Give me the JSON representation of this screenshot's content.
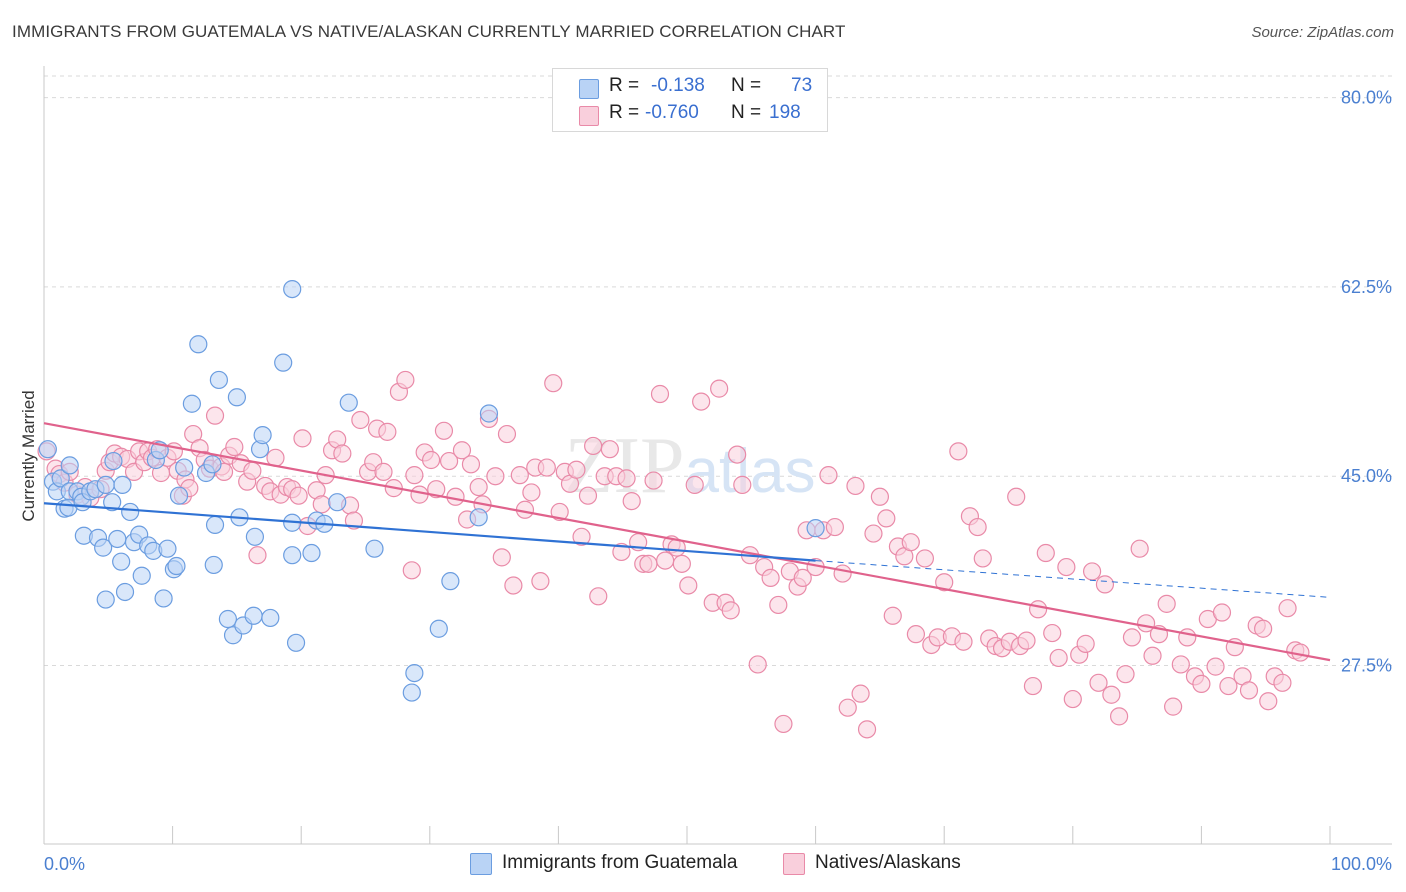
{
  "title": "IMMIGRANTS FROM GUATEMALA VS NATIVE/ALASKAN CURRENTLY MARRIED CORRELATION CHART",
  "source": "Source: ZipAtlas.com",
  "watermark": "ZIPatlas",
  "colors": {
    "blue_fill": "#b9d3f5",
    "blue_stroke": "#6b9de0",
    "blue_line": "#2f72d4",
    "pink_fill": "#f9cfdc",
    "pink_stroke": "#e98aa8",
    "pink_line": "#e0628c",
    "label_blue": "#4a7fd0",
    "grid": "#d9d9d9"
  },
  "legend": {
    "r_label": "R =",
    "n_label": "N =",
    "rows": [
      {
        "r": "-0.138",
        "n": "73"
      },
      {
        "r": "-0.760",
        "n": "198"
      }
    ]
  },
  "chart_data": {
    "type": "scatter",
    "title": "IMMIGRANTS FROM GUATEMALA VS NATIVE/ALASKAN CURRENTLY MARRIED CORRELATION CHART",
    "xlabel": "",
    "ylabel": "Currently Married",
    "xlim": [
      0,
      100
    ],
    "ylim": [
      11,
      82
    ],
    "x_tick_labels": [
      "0.0%",
      "100.0%"
    ],
    "y_ticks": [
      27.5,
      45.0,
      62.5,
      80.0
    ],
    "y_tick_labels": [
      "27.5%",
      "45.0%",
      "62.5%",
      "80.0%"
    ],
    "grid": true,
    "legend_position": "top-center",
    "series": [
      {
        "name": "Immigrants from Guatemala",
        "r": -0.138,
        "n": 73,
        "trend": {
          "x0": 0,
          "y0": 42.5,
          "x1": 60,
          "y1": 37.2,
          "dash_x1": 100,
          "dash_y1": 33.8
        },
        "points": [
          [
            0.3,
            47.5
          ],
          [
            0.7,
            44.5
          ],
          [
            1.0,
            43.6
          ],
          [
            1.3,
            44.8
          ],
          [
            1.6,
            42.0
          ],
          [
            1.9,
            42.1
          ],
          [
            2.0,
            43.6
          ],
          [
            2.6,
            43.6
          ],
          [
            2.9,
            43.1
          ],
          [
            3.0,
            42.6
          ],
          [
            3.1,
            39.5
          ],
          [
            3.6,
            43.6
          ],
          [
            4.0,
            43.8
          ],
          [
            4.2,
            39.3
          ],
          [
            4.6,
            38.4
          ],
          [
            4.8,
            44.2
          ],
          [
            5.3,
            42.6
          ],
          [
            5.4,
            46.4
          ],
          [
            5.7,
            39.2
          ],
          [
            6.0,
            37.1
          ],
          [
            6.3,
            34.3
          ],
          [
            6.7,
            41.7
          ],
          [
            7.0,
            38.9
          ],
          [
            7.4,
            39.6
          ],
          [
            7.6,
            35.8
          ],
          [
            8.1,
            38.6
          ],
          [
            8.5,
            38.1
          ],
          [
            8.7,
            46.5
          ],
          [
            9.0,
            47.4
          ],
          [
            9.3,
            33.7
          ],
          [
            9.6,
            38.3
          ],
          [
            10.1,
            36.4
          ],
          [
            10.3,
            36.7
          ],
          [
            10.5,
            43.2
          ],
          [
            10.9,
            45.8
          ],
          [
            11.5,
            51.7
          ],
          [
            12.0,
            57.2
          ],
          [
            12.6,
            45.3
          ],
          [
            13.1,
            46.1
          ],
          [
            13.2,
            36.8
          ],
          [
            13.3,
            40.5
          ],
          [
            13.6,
            53.9
          ],
          [
            14.3,
            31.8
          ],
          [
            14.7,
            30.3
          ],
          [
            15.0,
            52.3
          ],
          [
            15.2,
            41.2
          ],
          [
            15.5,
            31.2
          ],
          [
            16.3,
            32.1
          ],
          [
            16.4,
            39.4
          ],
          [
            16.8,
            47.5
          ],
          [
            17.0,
            48.8
          ],
          [
            17.6,
            31.9
          ],
          [
            18.6,
            55.5
          ],
          [
            19.3,
            62.3
          ],
          [
            19.3,
            40.7
          ],
          [
            19.3,
            37.7
          ],
          [
            19.6,
            29.6
          ],
          [
            20.8,
            37.9
          ],
          [
            21.2,
            40.9
          ],
          [
            21.8,
            40.6
          ],
          [
            22.8,
            42.6
          ],
          [
            23.7,
            51.8
          ],
          [
            25.7,
            38.3
          ],
          [
            28.6,
            25.0
          ],
          [
            28.8,
            26.8
          ],
          [
            30.7,
            30.9
          ],
          [
            31.6,
            35.3
          ],
          [
            33.8,
            41.2
          ],
          [
            34.6,
            50.8
          ],
          [
            60.0,
            40.2
          ],
          [
            4.8,
            33.6
          ],
          [
            2.0,
            46.0
          ],
          [
            6.1,
            44.2
          ]
        ]
      },
      {
        "name": "Natives/Alaskans",
        "r": -0.76,
        "n": 198,
        "trend": {
          "x0": 0,
          "y0": 49.9,
          "x1": 100,
          "y1": 28.0
        },
        "points": [
          [
            0.2,
            47.3
          ],
          [
            0.9,
            45.7
          ],
          [
            1.2,
            45.2
          ],
          [
            1.6,
            44.4
          ],
          [
            2.0,
            45.4
          ],
          [
            2.6,
            43.3
          ],
          [
            3.2,
            44.0
          ],
          [
            3.6,
            43.0
          ],
          [
            4.4,
            43.8
          ],
          [
            4.8,
            45.5
          ],
          [
            5.1,
            46.3
          ],
          [
            5.5,
            47.1
          ],
          [
            6.0,
            46.8
          ],
          [
            6.5,
            46.6
          ],
          [
            7.0,
            45.4
          ],
          [
            7.4,
            47.3
          ],
          [
            7.8,
            46.3
          ],
          [
            8.1,
            47.3
          ],
          [
            8.4,
            46.7
          ],
          [
            8.8,
            47.5
          ],
          [
            9.1,
            45.3
          ],
          [
            9.6,
            46.7
          ],
          [
            10.1,
            47.3
          ],
          [
            10.4,
            45.5
          ],
          [
            10.8,
            43.2
          ],
          [
            11.0,
            44.7
          ],
          [
            11.3,
            43.9
          ],
          [
            11.6,
            48.9
          ],
          [
            12.1,
            47.6
          ],
          [
            12.5,
            46.5
          ],
          [
            12.9,
            45.7
          ],
          [
            13.3,
            50.6
          ],
          [
            13.8,
            45.9
          ],
          [
            14.0,
            45.4
          ],
          [
            14.4,
            46.9
          ],
          [
            14.8,
            47.7
          ],
          [
            15.3,
            46.2
          ],
          [
            15.8,
            44.5
          ],
          [
            16.2,
            45.5
          ],
          [
            16.6,
            37.7
          ],
          [
            17.2,
            44.1
          ],
          [
            17.6,
            43.6
          ],
          [
            18.0,
            46.7
          ],
          [
            18.4,
            43.3
          ],
          [
            18.9,
            44.0
          ],
          [
            19.3,
            43.8
          ],
          [
            19.8,
            43.2
          ],
          [
            20.1,
            48.5
          ],
          [
            20.5,
            40.4
          ],
          [
            21.2,
            43.7
          ],
          [
            21.6,
            42.4
          ],
          [
            21.9,
            45.1
          ],
          [
            22.4,
            47.4
          ],
          [
            22.8,
            48.4
          ],
          [
            23.2,
            47.1
          ],
          [
            23.8,
            42.3
          ],
          [
            24.1,
            40.9
          ],
          [
            24.6,
            50.2
          ],
          [
            25.2,
            45.4
          ],
          [
            25.6,
            46.3
          ],
          [
            25.9,
            49.4
          ],
          [
            26.4,
            45.4
          ],
          [
            26.7,
            49.1
          ],
          [
            27.2,
            43.9
          ],
          [
            27.6,
            52.8
          ],
          [
            28.1,
            53.9
          ],
          [
            28.6,
            36.3
          ],
          [
            28.8,
            45.1
          ],
          [
            29.2,
            43.3
          ],
          [
            29.6,
            47.2
          ],
          [
            30.1,
            46.5
          ],
          [
            30.5,
            43.8
          ],
          [
            31.1,
            49.2
          ],
          [
            31.5,
            46.4
          ],
          [
            32.0,
            43.1
          ],
          [
            32.5,
            47.4
          ],
          [
            32.9,
            41.0
          ],
          [
            33.2,
            46.1
          ],
          [
            33.8,
            44.0
          ],
          [
            34.1,
            42.4
          ],
          [
            34.6,
            50.3
          ],
          [
            35.1,
            45.0
          ],
          [
            35.6,
            37.5
          ],
          [
            36.0,
            48.9
          ],
          [
            36.5,
            34.9
          ],
          [
            37.0,
            45.1
          ],
          [
            37.4,
            41.9
          ],
          [
            37.9,
            43.5
          ],
          [
            38.2,
            45.8
          ],
          [
            38.6,
            35.3
          ],
          [
            39.1,
            45.8
          ],
          [
            39.6,
            53.6
          ],
          [
            40.1,
            41.7
          ],
          [
            40.5,
            45.4
          ],
          [
            40.9,
            44.3
          ],
          [
            41.4,
            45.6
          ],
          [
            41.8,
            39.4
          ],
          [
            42.3,
            43.2
          ],
          [
            42.7,
            47.8
          ],
          [
            43.1,
            33.9
          ],
          [
            43.6,
            45.0
          ],
          [
            44.0,
            47.5
          ],
          [
            44.5,
            45.0
          ],
          [
            44.9,
            38.0
          ],
          [
            45.3,
            44.8
          ],
          [
            45.7,
            42.7
          ],
          [
            46.2,
            38.9
          ],
          [
            46.6,
            36.9
          ],
          [
            47.0,
            36.9
          ],
          [
            47.4,
            44.6
          ],
          [
            47.9,
            52.6
          ],
          [
            48.3,
            37.2
          ],
          [
            48.8,
            38.7
          ],
          [
            49.2,
            38.4
          ],
          [
            49.6,
            36.9
          ],
          [
            50.1,
            34.9
          ],
          [
            50.6,
            44.2
          ],
          [
            51.1,
            51.9
          ],
          [
            52.0,
            33.3
          ],
          [
            52.5,
            53.1
          ],
          [
            53.0,
            33.3
          ],
          [
            53.4,
            32.6
          ],
          [
            53.9,
            47.0
          ],
          [
            54.3,
            44.2
          ],
          [
            54.9,
            37.7
          ],
          [
            55.5,
            27.6
          ],
          [
            56.0,
            36.6
          ],
          [
            56.5,
            35.6
          ],
          [
            57.1,
            33.1
          ],
          [
            57.5,
            22.1
          ],
          [
            58.0,
            36.2
          ],
          [
            58.6,
            34.8
          ],
          [
            59.0,
            35.6
          ],
          [
            59.3,
            40.0
          ],
          [
            60.0,
            36.6
          ],
          [
            60.6,
            40.0
          ],
          [
            61.0,
            45.1
          ],
          [
            61.5,
            40.3
          ],
          [
            62.1,
            36.0
          ],
          [
            62.5,
            23.6
          ],
          [
            63.1,
            44.1
          ],
          [
            63.5,
            24.9
          ],
          [
            64.0,
            21.6
          ],
          [
            64.5,
            39.7
          ],
          [
            65.0,
            43.1
          ],
          [
            65.5,
            41.1
          ],
          [
            66.0,
            32.1
          ],
          [
            66.4,
            38.5
          ],
          [
            66.9,
            37.6
          ],
          [
            67.4,
            38.9
          ],
          [
            67.8,
            30.4
          ],
          [
            68.5,
            37.4
          ],
          [
            69.0,
            29.4
          ],
          [
            69.5,
            30.1
          ],
          [
            70.0,
            35.2
          ],
          [
            70.6,
            30.2
          ],
          [
            71.1,
            47.3
          ],
          [
            71.5,
            29.7
          ],
          [
            72.0,
            41.3
          ],
          [
            72.6,
            40.3
          ],
          [
            73.0,
            37.4
          ],
          [
            73.5,
            30.0
          ],
          [
            74.0,
            29.3
          ],
          [
            74.5,
            29.1
          ],
          [
            75.1,
            29.7
          ],
          [
            75.6,
            43.1
          ],
          [
            75.9,
            29.3
          ],
          [
            76.4,
            29.8
          ],
          [
            76.9,
            25.6
          ],
          [
            77.3,
            32.7
          ],
          [
            77.9,
            37.9
          ],
          [
            78.4,
            30.5
          ],
          [
            78.9,
            28.2
          ],
          [
            79.5,
            36.6
          ],
          [
            80.0,
            24.4
          ],
          [
            80.5,
            28.5
          ],
          [
            81.0,
            29.5
          ],
          [
            81.5,
            36.2
          ],
          [
            82.0,
            25.9
          ],
          [
            82.5,
            35.0
          ],
          [
            83.0,
            24.8
          ],
          [
            83.6,
            22.8
          ],
          [
            84.1,
            26.7
          ],
          [
            84.6,
            30.1
          ],
          [
            85.2,
            38.3
          ],
          [
            85.7,
            31.4
          ],
          [
            86.2,
            28.4
          ],
          [
            86.7,
            30.4
          ],
          [
            87.3,
            33.2
          ],
          [
            87.8,
            23.7
          ],
          [
            88.4,
            27.6
          ],
          [
            88.9,
            30.1
          ],
          [
            89.5,
            26.5
          ],
          [
            90.0,
            25.8
          ],
          [
            90.5,
            31.8
          ],
          [
            91.1,
            27.4
          ],
          [
            91.6,
            32.4
          ],
          [
            92.1,
            25.6
          ],
          [
            92.6,
            29.2
          ],
          [
            93.2,
            26.5
          ],
          [
            93.7,
            25.2
          ],
          [
            94.3,
            31.2
          ],
          [
            94.8,
            30.9
          ],
          [
            95.2,
            24.2
          ],
          [
            95.7,
            26.5
          ],
          [
            96.3,
            25.9
          ],
          [
            96.7,
            32.8
          ],
          [
            97.3,
            28.9
          ],
          [
            97.7,
            28.7
          ]
        ]
      }
    ]
  },
  "bottom_legend": [
    {
      "label": "Immigrants from Guatemala"
    },
    {
      "label": "Natives/Alaskans"
    }
  ]
}
